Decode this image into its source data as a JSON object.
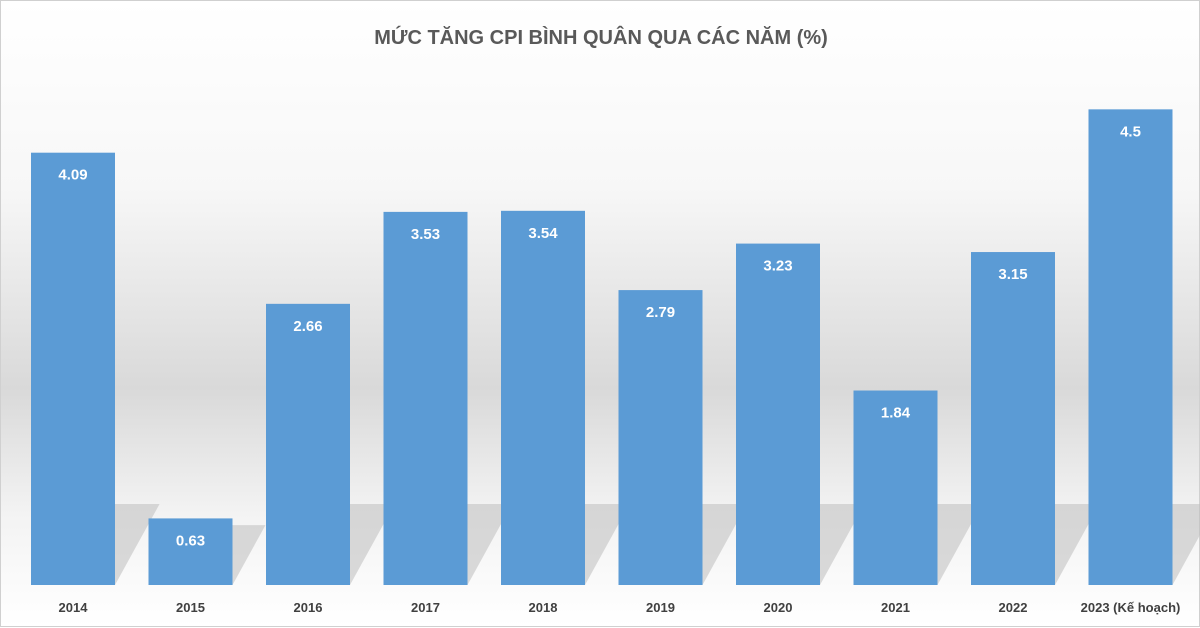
{
  "chart_data": {
    "type": "bar",
    "title": "MỨC TĂNG CPI BÌNH QUÂN QUA CÁC NĂM (%)",
    "categories": [
      "2014",
      "2015",
      "2016",
      "2017",
      "2018",
      "2019",
      "2020",
      "2021",
      "2022",
      "2023 (Kế hoạch)"
    ],
    "values": [
      4.09,
      0.63,
      2.66,
      3.53,
      3.54,
      2.79,
      3.23,
      1.84,
      3.15,
      4.5
    ],
    "data_labels": [
      "4.09",
      "0.63",
      "2.66",
      "3.53",
      "3.54",
      "2.79",
      "3.23",
      "1.84",
      "3.15",
      "4.5"
    ],
    "xlabel": "",
    "ylabel": "",
    "ylim": [
      0,
      5
    ],
    "grid": false,
    "legend": "none",
    "bar_color": "#5b9bd5"
  }
}
